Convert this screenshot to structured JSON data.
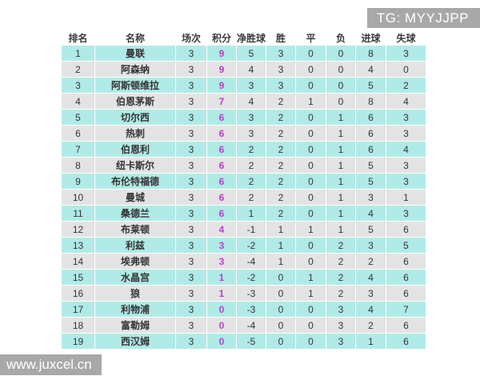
{
  "overlays": {
    "tg_badge": "TG: MYYJJPP",
    "watermark": "www.juxcel.cn"
  },
  "colors": {
    "row_cyan": "#b0eae7",
    "row_gray": "#e3e3e3",
    "points_accent": "#b940cb",
    "overlay_bg": "#a8a8a8"
  },
  "table": {
    "columns": [
      "排名",
      "名称",
      "场次",
      "积分",
      "净胜球",
      "胜",
      "平",
      "负",
      "进球",
      "失球"
    ],
    "rows": [
      {
        "rank": "1",
        "name": "曼联",
        "played": "3",
        "points": "9",
        "gd": "5",
        "won": "3",
        "drawn": "0",
        "lost": "0",
        "gf": "8",
        "ga": "3"
      },
      {
        "rank": "2",
        "name": "阿森纳",
        "played": "3",
        "points": "9",
        "gd": "4",
        "won": "3",
        "drawn": "0",
        "lost": "0",
        "gf": "4",
        "ga": "0"
      },
      {
        "rank": "3",
        "name": "阿斯顿维拉",
        "played": "3",
        "points": "9",
        "gd": "3",
        "won": "3",
        "drawn": "0",
        "lost": "0",
        "gf": "5",
        "ga": "2"
      },
      {
        "rank": "4",
        "name": "伯恩茅斯",
        "played": "3",
        "points": "7",
        "gd": "4",
        "won": "2",
        "drawn": "1",
        "lost": "0",
        "gf": "8",
        "ga": "4"
      },
      {
        "rank": "5",
        "name": "切尔西",
        "played": "3",
        "points": "6",
        "gd": "3",
        "won": "2",
        "drawn": "0",
        "lost": "1",
        "gf": "6",
        "ga": "3"
      },
      {
        "rank": "6",
        "name": "热刺",
        "played": "3",
        "points": "6",
        "gd": "3",
        "won": "2",
        "drawn": "0",
        "lost": "1",
        "gf": "6",
        "ga": "3"
      },
      {
        "rank": "7",
        "name": "伯恩利",
        "played": "3",
        "points": "6",
        "gd": "2",
        "won": "2",
        "drawn": "0",
        "lost": "1",
        "gf": "6",
        "ga": "4"
      },
      {
        "rank": "8",
        "name": "纽卡斯尔",
        "played": "3",
        "points": "6",
        "gd": "2",
        "won": "2",
        "drawn": "0",
        "lost": "1",
        "gf": "5",
        "ga": "3"
      },
      {
        "rank": "9",
        "name": "布伦特福德",
        "played": "3",
        "points": "6",
        "gd": "2",
        "won": "2",
        "drawn": "0",
        "lost": "1",
        "gf": "5",
        "ga": "3"
      },
      {
        "rank": "10",
        "name": "曼城",
        "played": "3",
        "points": "6",
        "gd": "2",
        "won": "2",
        "drawn": "0",
        "lost": "1",
        "gf": "3",
        "ga": "1"
      },
      {
        "rank": "11",
        "name": "桑德兰",
        "played": "3",
        "points": "6",
        "gd": "1",
        "won": "2",
        "drawn": "0",
        "lost": "1",
        "gf": "4",
        "ga": "3"
      },
      {
        "rank": "12",
        "name": "布莱顿",
        "played": "3",
        "points": "4",
        "gd": "-1",
        "won": "1",
        "drawn": "1",
        "lost": "1",
        "gf": "5",
        "ga": "6"
      },
      {
        "rank": "13",
        "name": "利兹",
        "played": "3",
        "points": "3",
        "gd": "-2",
        "won": "1",
        "drawn": "0",
        "lost": "2",
        "gf": "3",
        "ga": "5"
      },
      {
        "rank": "14",
        "name": "埃弗顿",
        "played": "3",
        "points": "3",
        "gd": "-4",
        "won": "1",
        "drawn": "0",
        "lost": "2",
        "gf": "2",
        "ga": "6"
      },
      {
        "rank": "15",
        "name": "水晶宫",
        "played": "3",
        "points": "1",
        "gd": "-2",
        "won": "0",
        "drawn": "1",
        "lost": "2",
        "gf": "4",
        "ga": "6"
      },
      {
        "rank": "16",
        "name": "狼",
        "played": "3",
        "points": "1",
        "gd": "-3",
        "won": "0",
        "drawn": "1",
        "lost": "2",
        "gf": "3",
        "ga": "6"
      },
      {
        "rank": "17",
        "name": "利物浦",
        "played": "3",
        "points": "0",
        "gd": "-3",
        "won": "0",
        "drawn": "0",
        "lost": "3",
        "gf": "4",
        "ga": "7"
      },
      {
        "rank": "18",
        "name": "富勒姆",
        "played": "3",
        "points": "0",
        "gd": "-4",
        "won": "0",
        "drawn": "0",
        "lost": "3",
        "gf": "2",
        "ga": "6"
      },
      {
        "rank": "19",
        "name": "西汉姆",
        "played": "3",
        "points": "0",
        "gd": "-5",
        "won": "0",
        "drawn": "0",
        "lost": "3",
        "gf": "1",
        "ga": "6"
      }
    ]
  }
}
